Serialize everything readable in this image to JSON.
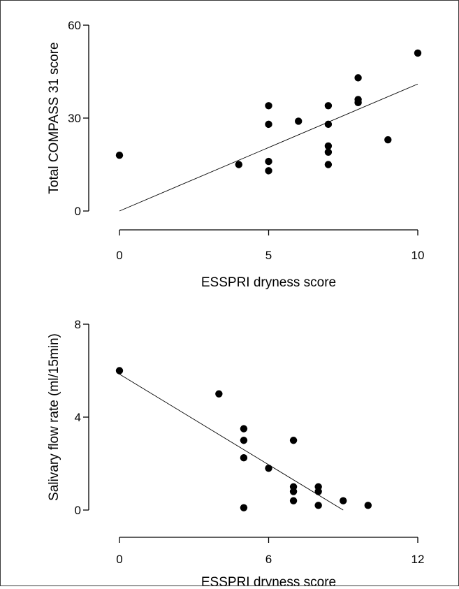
{
  "chart_data": [
    {
      "type": "scatter",
      "title": "",
      "xlabel": "ESSPRI dryness score",
      "ylabel": "Total COMPASS 31 score",
      "xlim": [
        0,
        10
      ],
      "ylim": [
        0,
        60
      ],
      "xticks": [
        "0",
        "5",
        "10"
      ],
      "yticks": [
        "0",
        "30",
        "60"
      ],
      "points": [
        {
          "x": 0,
          "y": 18
        },
        {
          "x": 4,
          "y": 15
        },
        {
          "x": 5,
          "y": 34
        },
        {
          "x": 5,
          "y": 28
        },
        {
          "x": 5,
          "y": 16
        },
        {
          "x": 5,
          "y": 13
        },
        {
          "x": 6,
          "y": 29
        },
        {
          "x": 7,
          "y": 34
        },
        {
          "x": 7,
          "y": 28
        },
        {
          "x": 7,
          "y": 21
        },
        {
          "x": 7,
          "y": 19
        },
        {
          "x": 7,
          "y": 15
        },
        {
          "x": 8,
          "y": 43
        },
        {
          "x": 8,
          "y": 36
        },
        {
          "x": 8,
          "y": 35
        },
        {
          "x": 9,
          "y": 23
        },
        {
          "x": 10,
          "y": 51
        }
      ],
      "fit_line": {
        "x": [
          0,
          10
        ],
        "y": [
          0,
          41
        ]
      },
      "grid": false,
      "legend": "none"
    },
    {
      "type": "scatter",
      "title": "",
      "xlabel": "ESSPRI dryness score",
      "ylabel": "Salivary flow rate (ml/15min)",
      "xlim": [
        0,
        12
      ],
      "ylim": [
        0,
        8
      ],
      "xticks": [
        "0",
        "6",
        "12"
      ],
      "yticks": [
        "0",
        "4",
        "8"
      ],
      "points": [
        {
          "x": 0,
          "y": 6
        },
        {
          "x": 4,
          "y": 5
        },
        {
          "x": 5,
          "y": 3.5
        },
        {
          "x": 5,
          "y": 3
        },
        {
          "x": 5,
          "y": 2.25
        },
        {
          "x": 5,
          "y": 0.1
        },
        {
          "x": 6,
          "y": 1.8
        },
        {
          "x": 7,
          "y": 3
        },
        {
          "x": 7,
          "y": 1
        },
        {
          "x": 7,
          "y": 0.8
        },
        {
          "x": 7,
          "y": 0.4
        },
        {
          "x": 8,
          "y": 1
        },
        {
          "x": 8,
          "y": 0.8
        },
        {
          "x": 8,
          "y": 0.2
        },
        {
          "x": 9,
          "y": 0.4
        },
        {
          "x": 10,
          "y": 0.2
        }
      ],
      "fit_line": {
        "x": [
          0,
          9
        ],
        "y": [
          5.85,
          0
        ]
      },
      "grid": false,
      "legend": "none"
    }
  ]
}
